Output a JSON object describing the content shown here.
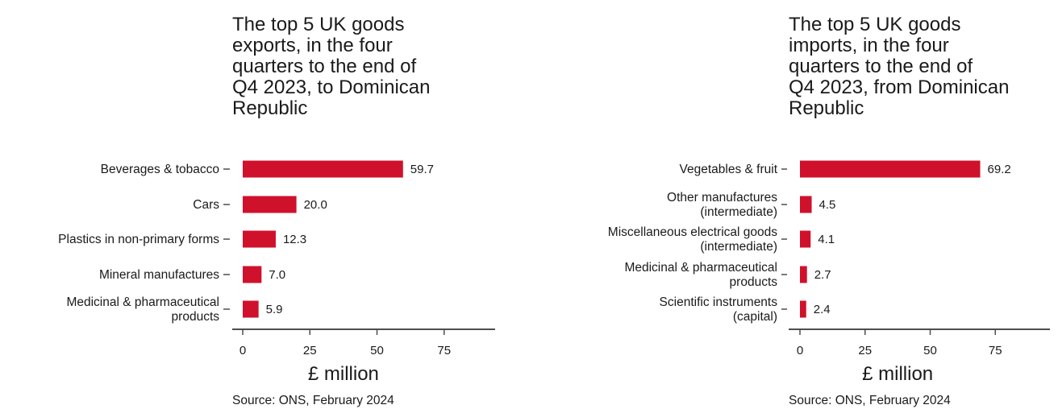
{
  "chart_data": [
    {
      "type": "bar",
      "orientation": "horizontal",
      "title_lines": [
        "The top 5 UK goods",
        "exports, in the four",
        "quarters to the end of",
        "Q4 2023, to Dominican",
        "Republic"
      ],
      "categories": [
        [
          "Beverages & tobacco"
        ],
        [
          "Cars"
        ],
        [
          "Plastics in non-primary forms"
        ],
        [
          "Mineral manufactures"
        ],
        [
          "Medicinal & pharmaceutical",
          "products"
        ]
      ],
      "values": [
        59.7,
        20.0,
        12.3,
        7.0,
        5.9
      ],
      "value_labels": [
        "59.7",
        "20.0",
        "12.3",
        "7.0",
        "5.9"
      ],
      "xlabel": "£ million",
      "xticks": [
        0,
        25,
        50,
        75
      ],
      "tick_labels": [
        "0",
        "25",
        "50",
        "75"
      ],
      "xlim": [
        0,
        95
      ],
      "grid": false,
      "source": "Source: ONS, February 2024"
    },
    {
      "type": "bar",
      "orientation": "horizontal",
      "title_lines": [
        "The top 5 UK goods",
        "imports, in the four",
        "quarters to the end of",
        "Q4 2023, from Dominican",
        "Republic"
      ],
      "categories": [
        [
          "Vegetables & fruit"
        ],
        [
          "Other manufactures",
          "(intermediate)"
        ],
        [
          "Miscellaneous electrical goods",
          "(intermediate)"
        ],
        [
          "Medicinal & pharmaceutical",
          "products"
        ],
        [
          "Scientific instruments",
          "(capital)"
        ]
      ],
      "values": [
        69.2,
        4.5,
        4.1,
        2.7,
        2.4
      ],
      "value_labels": [
        "69.2",
        "4.5",
        "4.1",
        "2.7",
        "2.4"
      ],
      "xlabel": "£ million",
      "xticks": [
        0,
        25,
        50,
        75
      ],
      "tick_labels": [
        "0",
        "25",
        "50",
        "75"
      ],
      "xlim": [
        0,
        95
      ],
      "grid": false,
      "source": "Source: ONS, February 2024"
    }
  ],
  "colors": {
    "bar": "#d0112b",
    "axis": "#4d4d4d",
    "text": "#1a1a1a"
  }
}
